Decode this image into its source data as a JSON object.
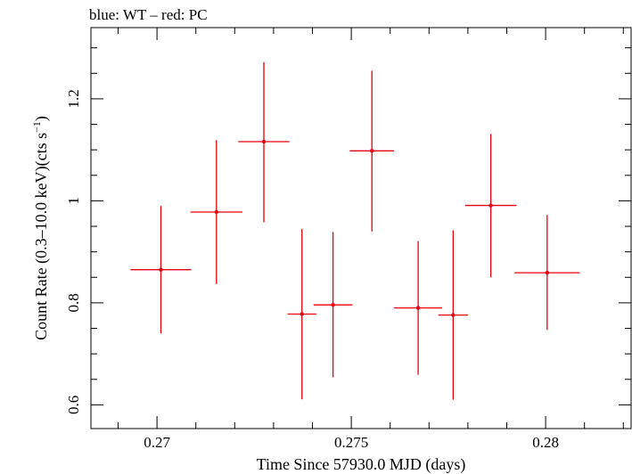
{
  "chart_data": {
    "type": "scatter",
    "title": "blue: WT – red: PC",
    "xlabel": "Time Since 57930.0 MJD (days)",
    "ylabel": "Count Rate (0.3–10.0 keV)(cts s",
    "ylabel_sup": "−1",
    "ylabel_end": ")",
    "xlim": [
      0.2683,
      0.2822
    ],
    "ylim": [
      0.5535,
      1.3396
    ],
    "xticks": [
      0.27,
      0.275,
      0.28
    ],
    "xtick_labels": [
      "0.27",
      "0.275",
      "0.28"
    ],
    "yticks": [
      0.6,
      0.8,
      1.0,
      1.2
    ],
    "ytick_labels": [
      "0.6",
      "0.8",
      "1",
      "1.2"
    ],
    "grid": false,
    "series": [
      {
        "color": "#e8000b",
        "points": [
          {
            "x": 0.2701,
            "y": 0.865,
            "xerr": 0.00078,
            "yerr_low": 0.125,
            "yerr_high": 0.125
          },
          {
            "x": 0.27153,
            "y": 0.978,
            "xerr": 0.00067,
            "yerr_low": 0.141,
            "yerr_high": 0.141
          },
          {
            "x": 0.27275,
            "y": 1.116,
            "xerr": 0.00066,
            "yerr_low": 0.158,
            "yerr_high": 0.156
          },
          {
            "x": 0.27373,
            "y": 0.778,
            "xerr": 0.00037,
            "yerr_low": 0.167,
            "yerr_high": 0.167
          },
          {
            "x": 0.27453,
            "y": 0.796,
            "xerr": 0.0005,
            "yerr_low": 0.142,
            "yerr_high": 0.143
          },
          {
            "x": 0.27553,
            "y": 1.098,
            "xerr": 0.00057,
            "yerr_low": 0.158,
            "yerr_high": 0.157
          },
          {
            "x": 0.27672,
            "y": 0.79,
            "xerr": 0.00062,
            "yerr_low": 0.131,
            "yerr_high": 0.131
          },
          {
            "x": 0.27762,
            "y": 0.776,
            "xerr": 0.00038,
            "yerr_low": 0.166,
            "yerr_high": 0.166
          },
          {
            "x": 0.27859,
            "y": 0.991,
            "xerr": 0.00066,
            "yerr_low": 0.141,
            "yerr_high": 0.14
          },
          {
            "x": 0.28004,
            "y": 0.859,
            "xerr": 0.00084,
            "yerr_low": 0.112,
            "yerr_high": 0.113
          }
        ]
      }
    ]
  }
}
